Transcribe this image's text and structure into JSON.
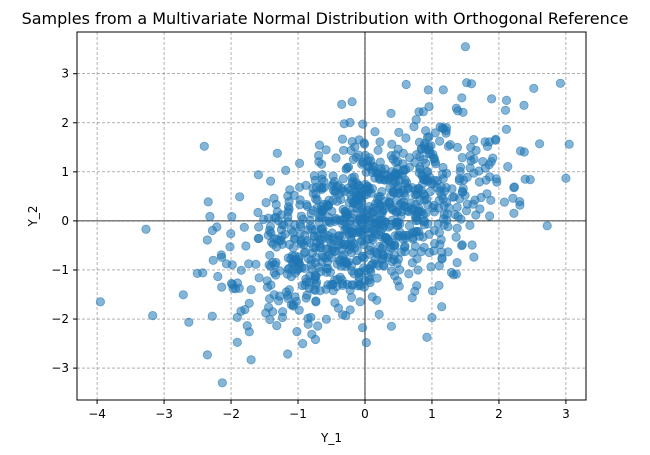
{
  "chart_data": {
    "type": "scatter",
    "title": "Samples from a Multivariate Normal Distribution with Orthogonal Reference",
    "xlabel": "Y_1",
    "ylabel": "Y_2",
    "xlim": [
      -4.3,
      3.3
    ],
    "ylim": [
      -3.65,
      3.85
    ],
    "xticks": [
      -4,
      -3,
      -2,
      -1,
      0,
      1,
      2,
      3
    ],
    "yticks": [
      -3,
      -2,
      -1,
      0,
      1,
      2,
      3
    ],
    "grid": true,
    "reference_lines": {
      "x": 0,
      "y": 0
    },
    "point_color": "#1f77b4",
    "point_alpha": 0.55,
    "num_points": 1000,
    "mean": [
      0,
      0
    ],
    "correlation_approx": 0.5,
    "notable_points": [
      {
        "x": -3.95,
        "y": -1.65
      },
      {
        "x": -3.27,
        "y": -0.17
      },
      {
        "x": -3.17,
        "y": -1.93
      },
      {
        "x": 1.5,
        "y": 3.55
      },
      {
        "x": 3.0,
        "y": 0.87
      },
      {
        "x": 2.52,
        "y": 2.7
      },
      {
        "x": -2.13,
        "y": -3.3
      },
      {
        "x": -0.93,
        "y": -2.5
      },
      {
        "x": 0.02,
        "y": -2.48
      },
      {
        "x": -2.4,
        "y": 1.52
      },
      {
        "x": 2.72,
        "y": -0.1
      },
      {
        "x": 1.17,
        "y": 2.67
      },
      {
        "x": -1.7,
        "y": -2.83
      },
      {
        "x": 1.0,
        "y": -1.97
      }
    ]
  }
}
